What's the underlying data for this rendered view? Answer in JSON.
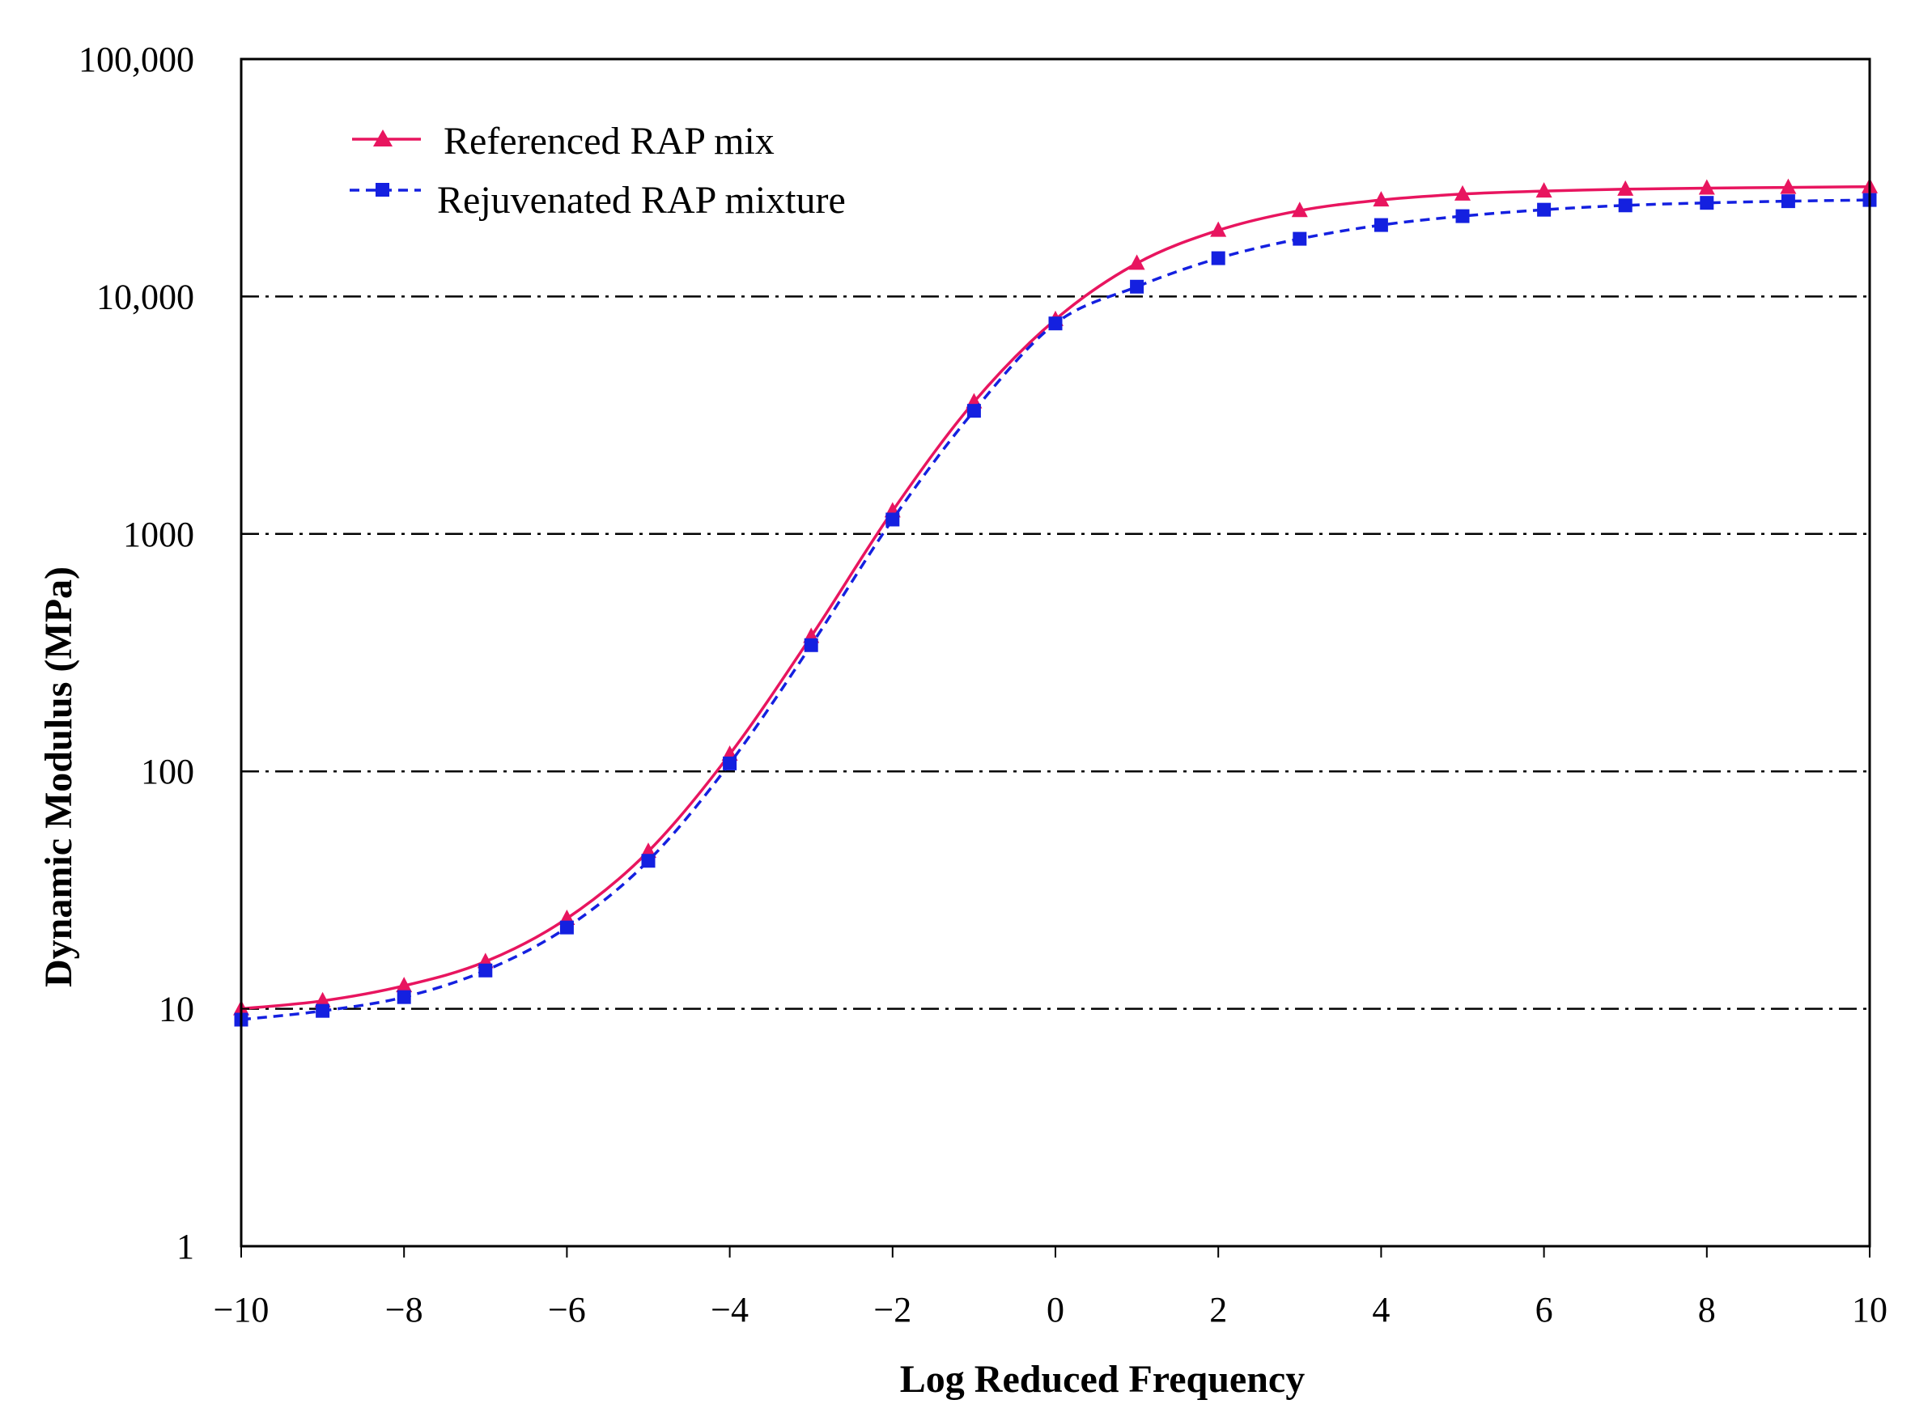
{
  "chart_data": {
    "type": "line",
    "title": "",
    "xlabel": "Log Reduced Frequency",
    "ylabel": "Dynamic Modulus (MPa)",
    "xlim": [
      -10,
      10
    ],
    "ylim": [
      1,
      100000
    ],
    "yscale": "log",
    "grid": "horizontal dash-dot",
    "legend_position": "top-left",
    "x_ticks": [
      -10,
      -8,
      -6,
      -4,
      -2,
      0,
      2,
      4,
      6,
      8,
      10
    ],
    "x_tick_labels": [
      "−10",
      "−8",
      "−6",
      "−4",
      "−2",
      "0",
      "2",
      "4",
      "6",
      "8",
      "10"
    ],
    "y_ticks": [
      1,
      10,
      100,
      1000,
      10000,
      100000
    ],
    "y_tick_labels": [
      "1",
      "10",
      "100",
      "1000",
      "10,000",
      "100,000"
    ],
    "x": [
      -10,
      -9,
      -8,
      -7,
      -6,
      -5,
      -4,
      -3,
      -2,
      -1,
      0,
      1,
      2,
      3,
      4,
      5,
      6,
      7,
      8,
      9,
      10
    ],
    "series": [
      {
        "name": "Referenced RAP mix",
        "color": "#e8155f",
        "marker": "triangle",
        "line": "solid",
        "values": [
          10,
          10.8,
          12.5,
          15.8,
          24,
          46,
          118,
          370,
          1250,
          3600,
          8000,
          13800,
          19000,
          23000,
          25500,
          27000,
          27800,
          28300,
          28600,
          28800,
          29000
        ]
      },
      {
        "name": "Rejuvenated RAP mixture",
        "color": "#1420e0",
        "marker": "square",
        "line": "dashed",
        "values": [
          9,
          9.8,
          11.2,
          14.5,
          22,
          42,
          108,
          340,
          1150,
          3300,
          7700,
          11000,
          14500,
          17500,
          20000,
          21800,
          23200,
          24200,
          24800,
          25200,
          25500
        ]
      }
    ]
  }
}
